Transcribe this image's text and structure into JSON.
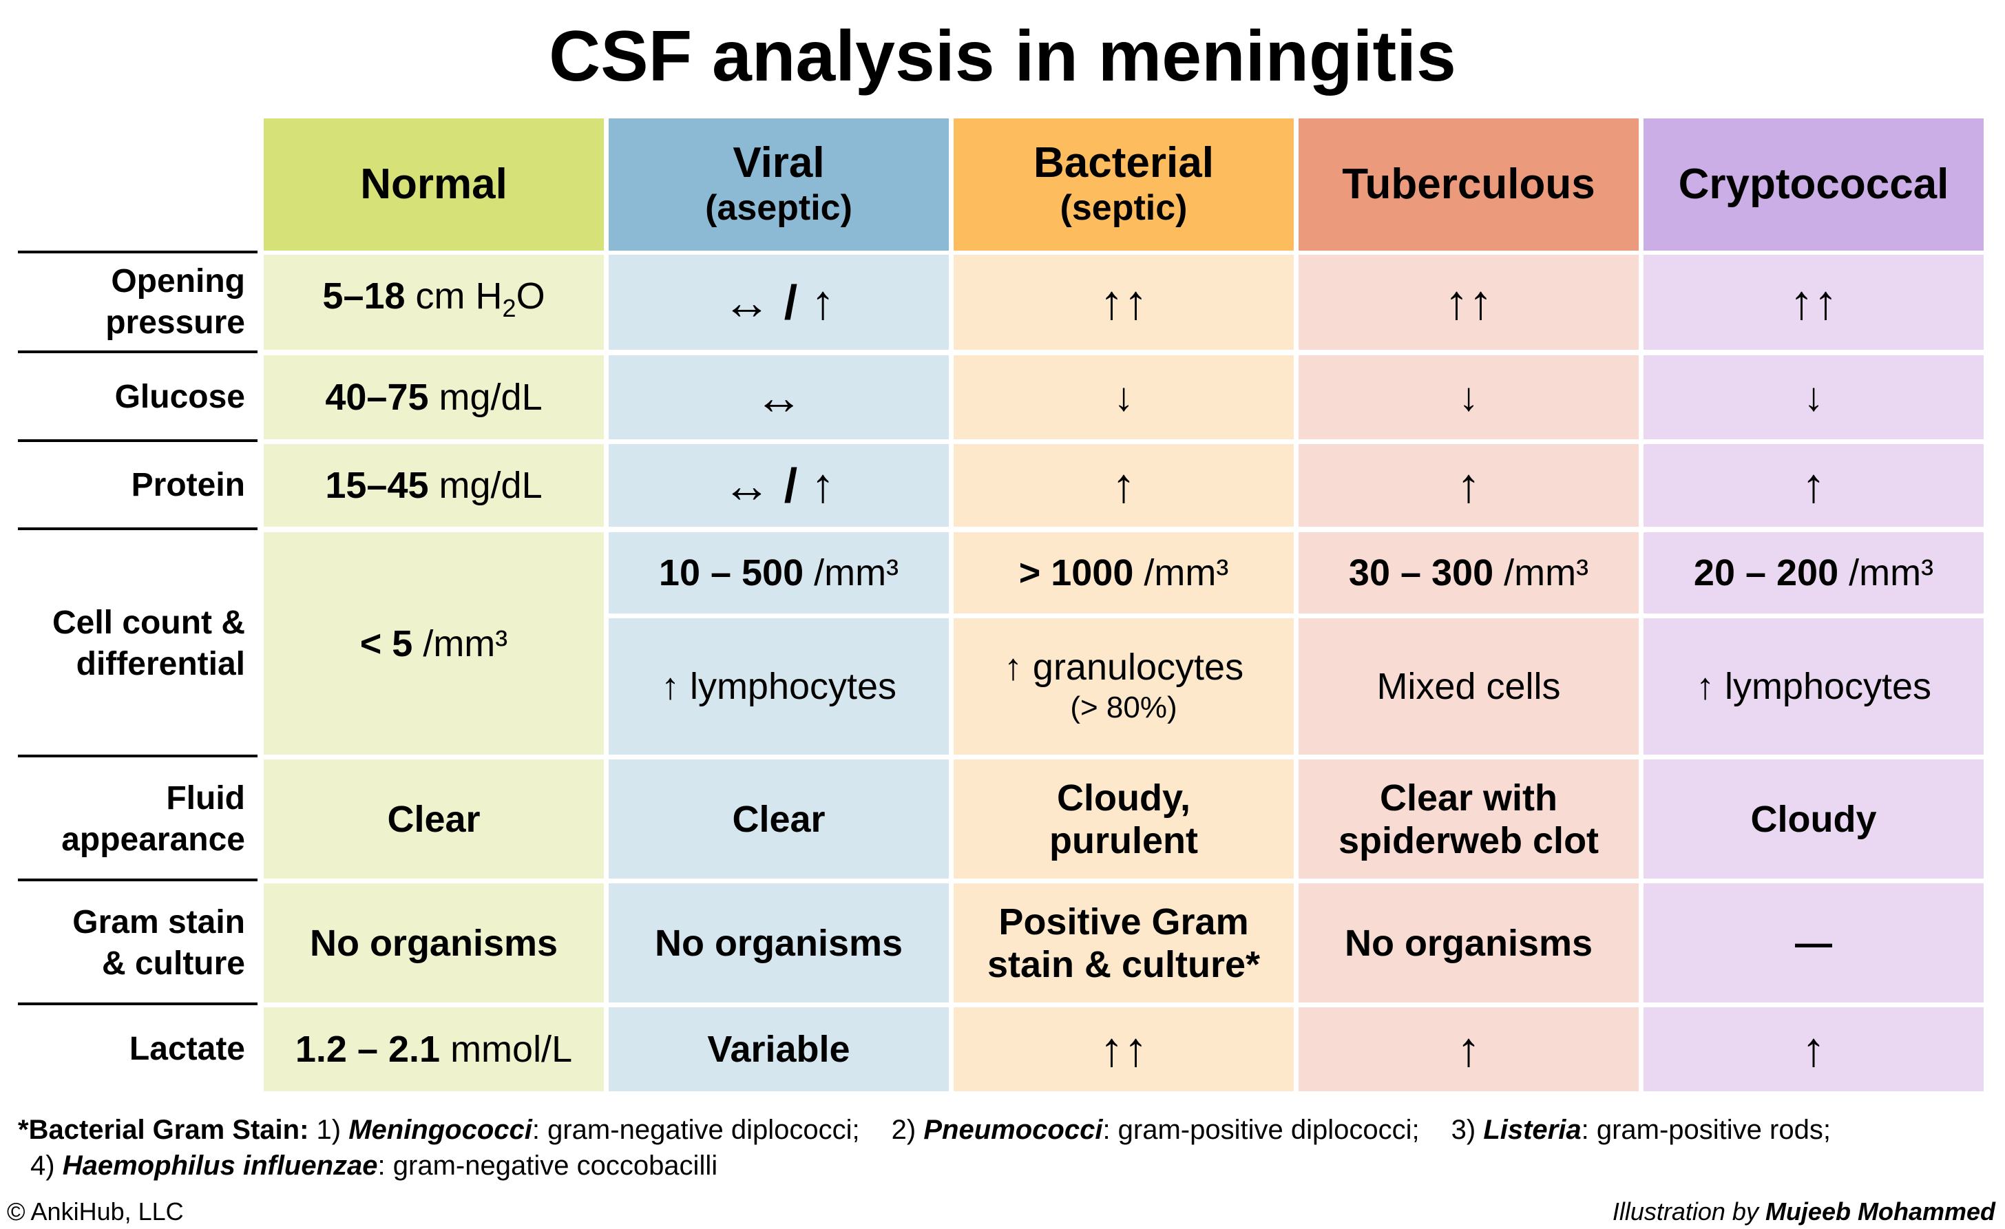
{
  "title": "CSF analysis in meningitis",
  "colors": {
    "normal": {
      "header": "#d6e178",
      "body": "#eef3cd"
    },
    "viral": {
      "header": "#8cbad4",
      "body": "#d6e6ef"
    },
    "bacterial": {
      "header": "#fdbd5e",
      "body": "#fde8cb"
    },
    "tuberculous": {
      "header": "#eb9a7c",
      "body": "#f8dcd3"
    },
    "cryptococcal": {
      "header": "#cbaee6",
      "body": "#ead8f2"
    }
  },
  "columns": [
    {
      "name": "Normal",
      "sub": ""
    },
    {
      "name": "Viral",
      "sub": "(aseptic)"
    },
    {
      "name": "Bacterial",
      "sub": "(septic)"
    },
    {
      "name": "Tuberculous",
      "sub": ""
    },
    {
      "name": "Cryptococcal",
      "sub": ""
    }
  ],
  "rows": {
    "opening_pressure": {
      "label_line1": "Opening",
      "label_line2": "pressure",
      "normal_bold": "5–18",
      "normal_unit": " cm H",
      "normal_sub": "2",
      "normal_end": "O",
      "viral": "↔ / ↑",
      "bacterial": "↑↑",
      "tuberculous": "↑↑",
      "cryptococcal": "↑↑"
    },
    "glucose": {
      "label": "Glucose",
      "normal_bold": "40–75",
      "normal_unit": " mg/dL",
      "viral": "↔",
      "bacterial": "↓",
      "tuberculous": "↓",
      "cryptococcal": "↓"
    },
    "protein": {
      "label": "Protein",
      "normal_bold": "15–45",
      "normal_unit": " mg/dL",
      "viral": "↔ / ↑",
      "bacterial": "↑",
      "tuberculous": "↑",
      "cryptococcal": "↑"
    },
    "cell_count": {
      "label_line1": "Cell count &",
      "label_line2": "differential",
      "normal_bold": "< 5",
      "normal_unit": " /mm³",
      "viral_bold": "10 – 500",
      "viral_unit": " /mm³",
      "viral_diff": "↑ lymphocytes",
      "bacterial_bold": "> 1000",
      "bacterial_unit": " /mm³",
      "bacterial_diff": "↑ granulocytes",
      "bacterial_diff_note": "(> 80%)",
      "tuberculous_bold": "30 – 300",
      "tuberculous_unit": " /mm³",
      "tuberculous_diff": "Mixed cells",
      "cryptococcal_bold": "20 – 200",
      "cryptococcal_unit": " /mm³",
      "cryptococcal_diff": "↑ lymphocytes"
    },
    "fluid_appearance": {
      "label_line1": "Fluid",
      "label_line2": "appearance",
      "normal": "Clear",
      "viral": "Clear",
      "bacterial_line1": "Cloudy,",
      "bacterial_line2": "purulent",
      "tuberculous_line1": "Clear with",
      "tuberculous_line2": "spiderweb clot",
      "cryptococcal": "Cloudy"
    },
    "gram_stain": {
      "label_line1": "Gram stain",
      "label_line2": "& culture",
      "normal": "No organisms",
      "viral": "No organisms",
      "bacterial_line1": "Positive Gram",
      "bacterial_line2": "stain & culture*",
      "tuberculous": "No organisms",
      "cryptococcal": "—"
    },
    "lactate": {
      "label": "Lactate",
      "normal_bold": "1.2 – 2.1",
      "normal_unit": " mmol/L",
      "viral": "Variable",
      "bacterial": "↑↑",
      "tuberculous": "↑",
      "cryptococcal": "↑"
    }
  },
  "footnote": {
    "lead": "*Bacterial Gram Stain:",
    "i1_num": " 1) ",
    "i1_name": "Meningococci",
    "i1_text": ": gram-negative diplococci;",
    "i2_num": "2) ",
    "i2_name": "Pneumococci",
    "i2_text": ": gram-positive diplococci;",
    "i3_num": "3) ",
    "i3_name": "Listeria",
    "i3_text": ": gram-positive rods;",
    "i4_num": "4) ",
    "i4_name": "Haemophilus influenzae",
    "i4_text": ": gram-negative coccobacilli"
  },
  "copyright": "© AnkiHub, LLC",
  "credit_prefix": "Illustration by ",
  "credit_name": "Mujeeb Mohammed"
}
